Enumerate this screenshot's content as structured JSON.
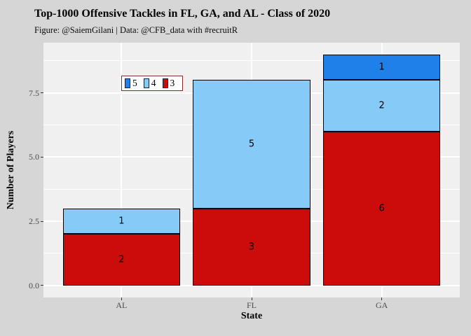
{
  "chart_data": {
    "type": "bar",
    "stacked": true,
    "title": "Top-1000 Offensive Tackles in FL, GA, and AL - Class of 2020",
    "subtitle": "Figure: @SaiemGilani | Data: @CFB_data with #recruitR",
    "xlabel": "State",
    "ylabel": "Number of Players",
    "categories": [
      "AL",
      "FL",
      "GA"
    ],
    "series": [
      {
        "name": "3",
        "color": "#cc0b0b",
        "values": [
          2,
          3,
          6
        ]
      },
      {
        "name": "4",
        "color": "#86cbf7",
        "values": [
          1,
          5,
          2
        ]
      },
      {
        "name": "5",
        "color": "#1e80e8",
        "values": [
          0,
          0,
          1
        ]
      }
    ],
    "segment_labels": true,
    "legend": {
      "position": "inside-top-left",
      "order": [
        "5",
        "4",
        "3"
      ]
    },
    "y_ticks": [
      0,
      2.5,
      5,
      7.5
    ],
    "y_tick_labels": [
      "0.0",
      "2.5",
      "5.0",
      "7.5"
    ],
    "y_minor_ticks": [
      1.25,
      3.75,
      6.25,
      8.75
    ],
    "ylim": [
      -0.47,
      9.45
    ],
    "x_domain": [
      0.4,
      3.6
    ],
    "bar_width_ratio": 0.9,
    "grid": true
  },
  "colors": {
    "figure_bg": "#d6d6d6",
    "panel_bg": "#f0f0f0",
    "gridline": "#ffffff",
    "bar_border": "#000000",
    "tick_text": "#4d4d4d",
    "legend_bg": "#ffffff",
    "legend_border": "#8b2a2a"
  }
}
